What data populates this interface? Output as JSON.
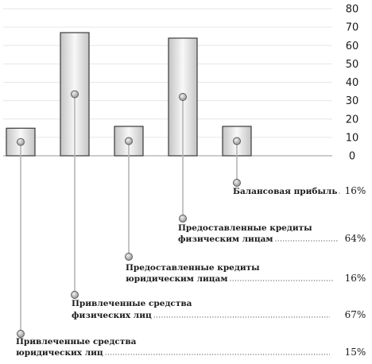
{
  "chart_data": {
    "type": "bar",
    "ylim": [
      0,
      80
    ],
    "yticks": [
      0,
      10,
      20,
      30,
      40,
      50,
      60,
      70,
      80
    ],
    "grid": true,
    "values": [
      15,
      67,
      16,
      64,
      16
    ],
    "categories": [
      {
        "line1": "Привлеченные средства",
        "line2": "юридических лиц",
        "pct": "15%"
      },
      {
        "line1": "Привлеченные средства",
        "line2": "физических лиц",
        "pct": "67%"
      },
      {
        "line1": "Предоставленные кредиты",
        "line2": "юридическим лицам",
        "pct": "16%"
      },
      {
        "line1": "Предоставленные кредиты",
        "line2": "физическим лицам",
        "pct": "64%"
      },
      {
        "line1": "",
        "line2": "Балансовая прибыль",
        "pct": "16%"
      }
    ]
  }
}
